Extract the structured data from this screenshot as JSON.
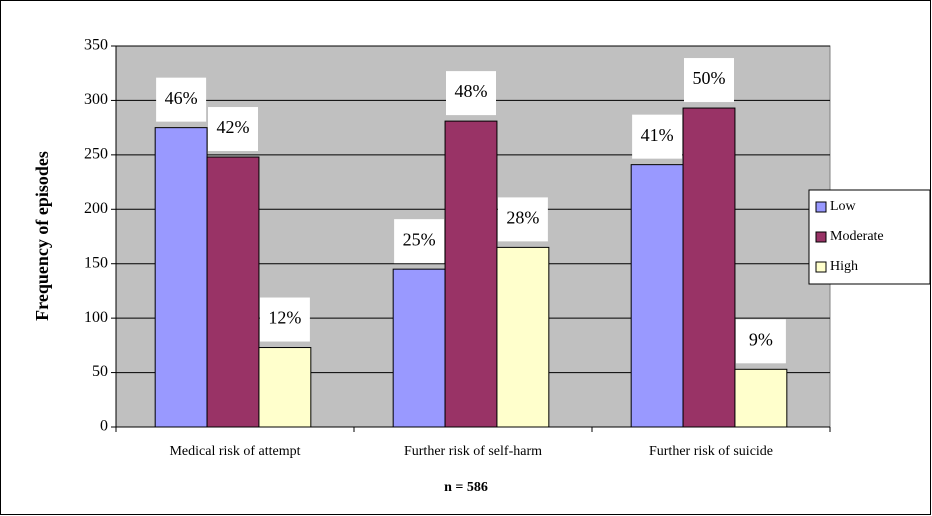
{
  "chart_data": {
    "type": "bar",
    "x_label": "n = 586",
    "y_label": "Frequency of episodes",
    "categories": [
      "Medical risk of attempt",
      "Further risk of self-harm",
      "Further risk of suicide"
    ],
    "series": [
      {
        "name": "Low",
        "color": "#9999ff",
        "values": [
          275,
          145,
          241
        ],
        "value_labels": [
          "46%",
          "25%",
          "41%"
        ]
      },
      {
        "name": "Moderate",
        "color": "#993366",
        "values": [
          248,
          281,
          293
        ],
        "value_labels": [
          "42%",
          "48%",
          "50%"
        ]
      },
      {
        "name": "High",
        "color": "#ffffcc",
        "values": [
          73,
          165,
          53
        ],
        "value_labels": [
          "12%",
          "28%",
          "9%"
        ]
      }
    ],
    "ylim": [
      0,
      350
    ],
    "yticks": [
      0,
      50,
      100,
      150,
      200,
      250,
      300,
      350
    ],
    "grid": true,
    "legend": "right",
    "plot_background": "#c0c0c0"
  }
}
